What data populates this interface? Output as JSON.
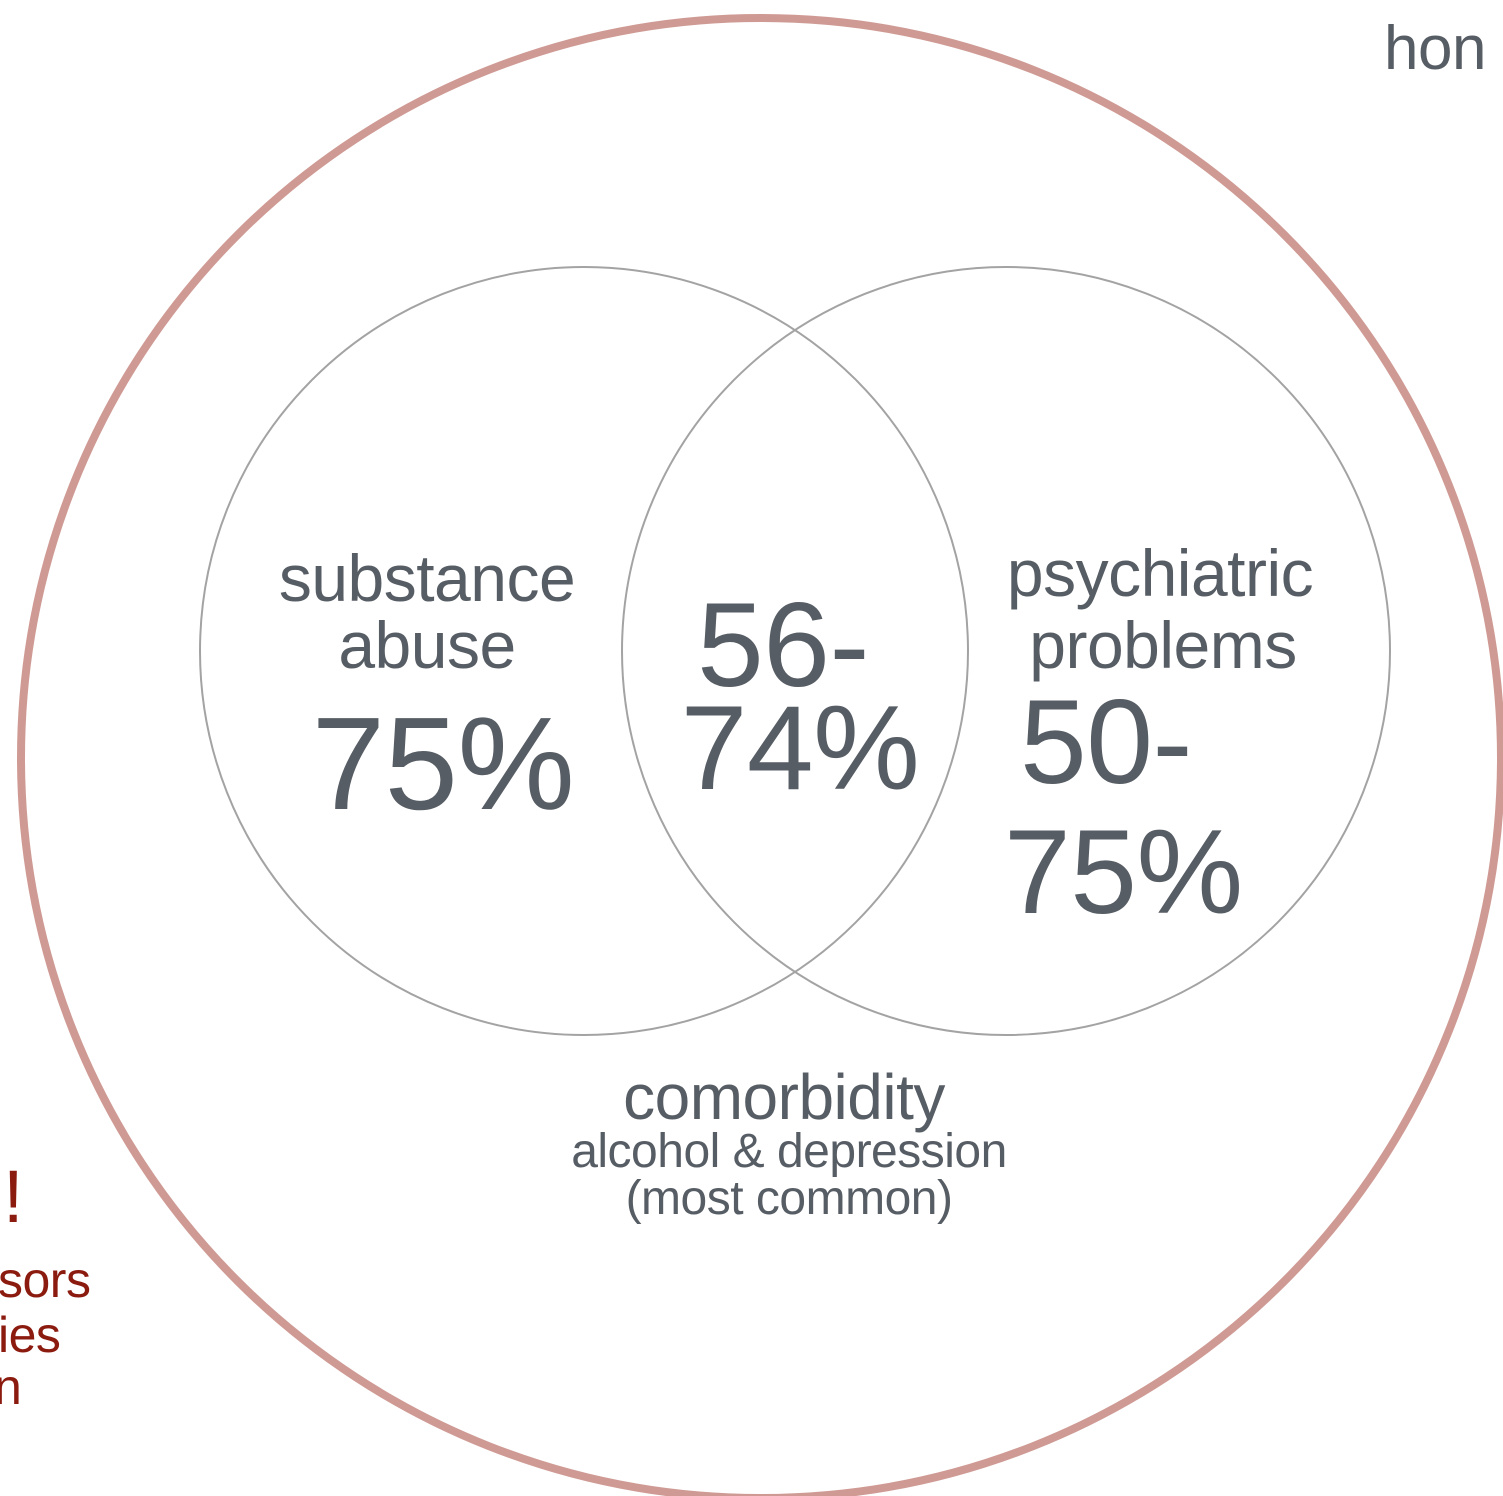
{
  "colors": {
    "outer_ring": "#cf9a94",
    "inner_ring": "#a3a3a3",
    "text": "#575d64",
    "accent_text": "#8b1a0f"
  },
  "outer": {
    "top_right_partial": "hon"
  },
  "left_circle": {
    "label_line1": "substance",
    "label_line2": "abuse",
    "value": "75%"
  },
  "overlap": {
    "value_line1": "56-",
    "value_line2": "74%"
  },
  "right_circle": {
    "label_line1": "psychiatric",
    "label_line2": "problems",
    "value_line1": "50-",
    "value_line2": "75%"
  },
  "comorbidity": {
    "title": "comorbidity",
    "line1": "alcohol & depression",
    "line2": "(most common)"
  },
  "left_fragment": {
    "exclaim": "!",
    "line1": "sors",
    "line2": "ies",
    "line3": "n"
  }
}
